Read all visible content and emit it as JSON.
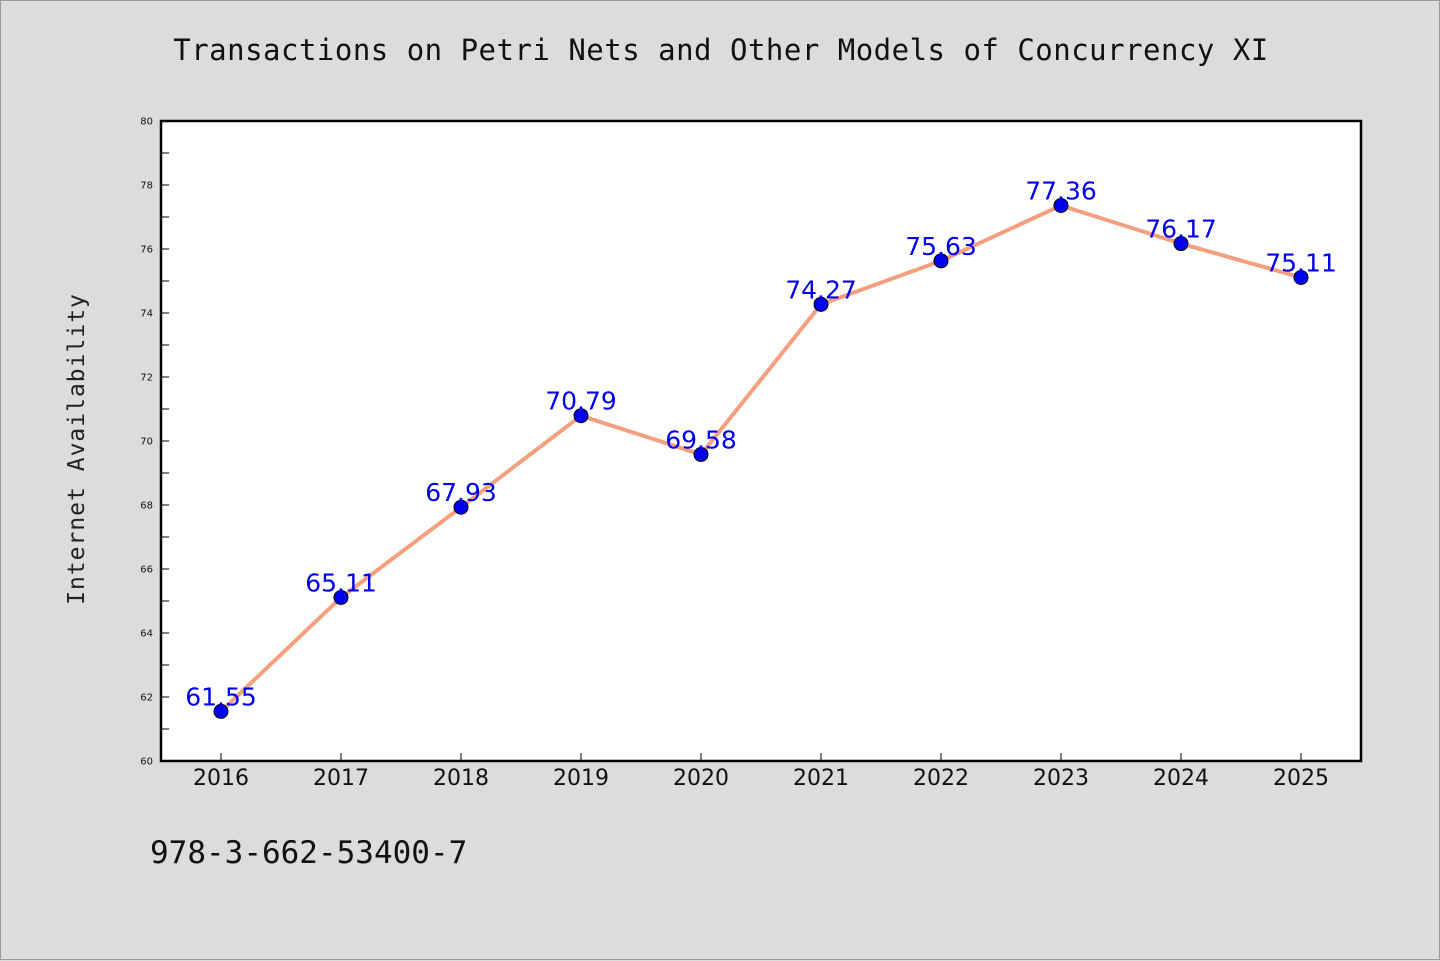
{
  "title": "Transactions on Petri Nets and Other Models of Concurrency XI",
  "footer_text": "978-3-662-53400-7",
  "colors": {
    "background": "#dcdcdc",
    "plot_background": "#ffffff",
    "line": "#f4a07e",
    "marker": "#0000ee",
    "data_label": "#0000ee"
  },
  "chart_data": {
    "type": "line",
    "title": "Transactions on Petri Nets and Other Models of Concurrency XI",
    "xlabel": "",
    "ylabel": "Internet Availability",
    "x": [
      "2016",
      "2017",
      "2018",
      "2019",
      "2020",
      "2021",
      "2022",
      "2023",
      "2024",
      "2025"
    ],
    "series": [
      {
        "values": [
          61.55,
          65.11,
          67.93,
          70.79,
          69.58,
          74.27,
          75.63,
          77.36,
          76.17,
          75.11
        ]
      }
    ],
    "data_labels": [
      "61.55",
      "65.11",
      "67.93",
      "70.79",
      "69.58",
      "74.27",
      "75.63",
      "77.36",
      "76.17",
      "75.11"
    ],
    "ylim": [
      60,
      80
    ],
    "y_ticks": [
      "60",
      "62",
      "64",
      "66",
      "68",
      "70",
      "72",
      "74",
      "76",
      "78",
      "80"
    ],
    "grid": false,
    "legend": "none"
  }
}
